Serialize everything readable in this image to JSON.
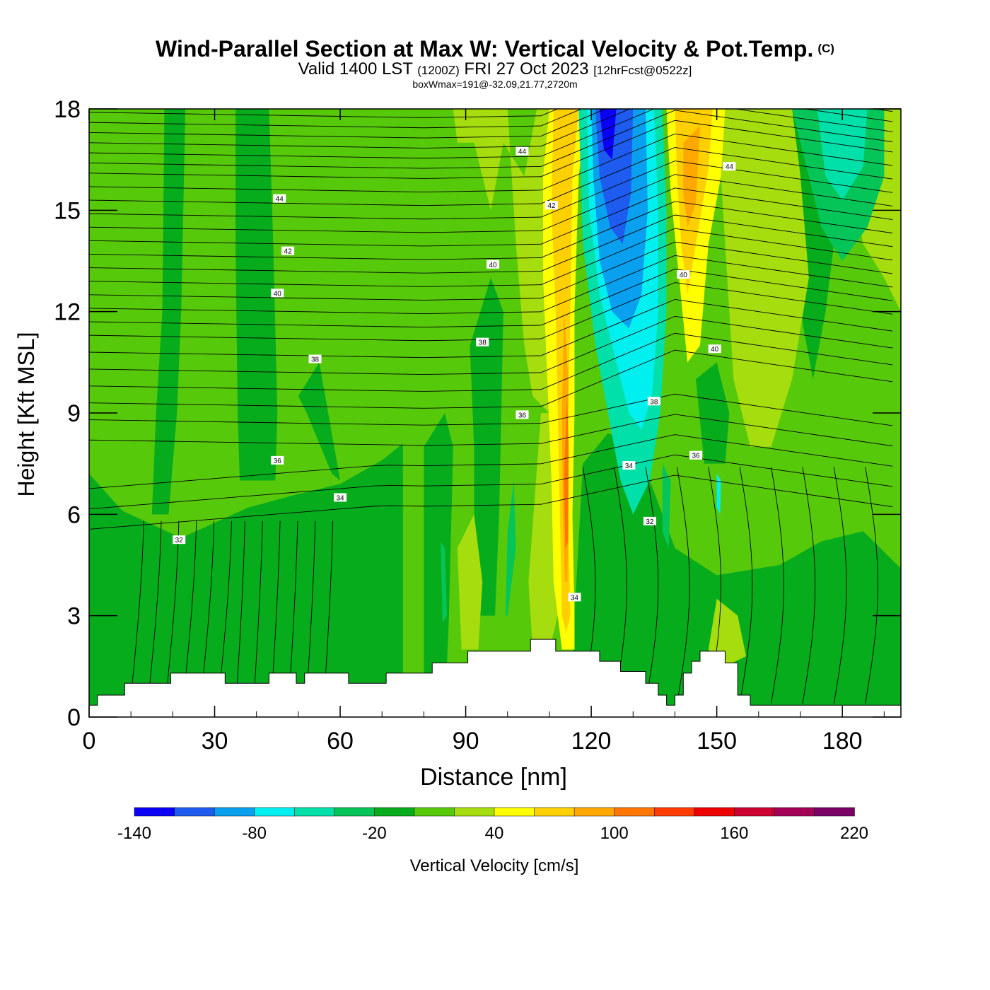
{
  "header": {
    "title": "Wind-Parallel Section at Max W: Vertical Velocity & Pot.Temp.",
    "copyright": "(C)",
    "valid_prefix": "Valid 1400 LST",
    "valid_utc": "(1200Z)",
    "valid_date": "FRI 27 Oct 2023",
    "forecast_info": "[12hrFcst@0522z]",
    "box_info": "boxWmax=191@-32.09,21.77,2720m"
  },
  "chart_data": {
    "type": "heatmap",
    "xlabel": "Distance [nm]",
    "ylabel": "Height [Kft MSL]",
    "xlim": [
      0,
      194
    ],
    "ylim": [
      0,
      18
    ],
    "x_ticks": [
      "0",
      "30",
      "60",
      "90",
      "120",
      "150",
      "180"
    ],
    "y_ticks": [
      "0",
      "3",
      "6",
      "9",
      "12",
      "15",
      "18"
    ],
    "colorbar": {
      "label": "Vertical Velocity [cm/s]",
      "levels": [
        -140,
        -120,
        -100,
        -80,
        -60,
        -40,
        -20,
        0,
        20,
        40,
        60,
        80,
        100,
        120,
        140,
        160,
        180,
        200,
        220
      ],
      "tick_labels": [
        "-140",
        "-80",
        "-20",
        "40",
        "100",
        "160",
        "220"
      ],
      "colors": [
        "#0a00f5",
        "#1e5cf0",
        "#0aa0f0",
        "#00f0f0",
        "#00e0a8",
        "#06c558",
        "#07ac1d",
        "#57c90b",
        "#a6dd0e",
        "#ffff00",
        "#ffd000",
        "#ffa800",
        "#ff7600",
        "#ff3c00",
        "#ee0000",
        "#cc0033",
        "#a30055",
        "#7a0066"
      ]
    },
    "terrain_kft": [
      [
        0,
        0.35
      ],
      [
        2,
        0.35
      ],
      [
        2,
        0.65
      ],
      [
        8.5,
        0.65
      ],
      [
        8.5,
        1.0
      ],
      [
        19.5,
        1.0
      ],
      [
        19.5,
        1.3
      ],
      [
        32.5,
        1.3
      ],
      [
        32.5,
        1.0
      ],
      [
        43,
        1.0
      ],
      [
        43,
        1.3
      ],
      [
        49.5,
        1.3
      ],
      [
        49.5,
        1.0
      ],
      [
        51.5,
        1.0
      ],
      [
        51.5,
        1.3
      ],
      [
        62,
        1.3
      ],
      [
        62,
        1.0
      ],
      [
        71,
        1.0
      ],
      [
        71,
        1.3
      ],
      [
        82,
        1.3
      ],
      [
        82,
        1.6
      ],
      [
        90.5,
        1.6
      ],
      [
        90.5,
        1.95
      ],
      [
        105.5,
        1.95
      ],
      [
        105.5,
        2.3
      ],
      [
        111.5,
        2.3
      ],
      [
        111.5,
        1.95
      ],
      [
        122,
        1.95
      ],
      [
        122,
        1.65
      ],
      [
        127,
        1.65
      ],
      [
        127,
        1.35
      ],
      [
        133,
        1.35
      ],
      [
        133,
        1.0
      ],
      [
        136,
        1.0
      ],
      [
        136,
        0.65
      ],
      [
        138,
        0.65
      ],
      [
        138,
        0.35
      ],
      [
        140,
        0.35
      ],
      [
        140,
        0.65
      ],
      [
        142,
        0.65
      ],
      [
        142,
        1.3
      ],
      [
        144,
        1.3
      ],
      [
        144,
        1.65
      ],
      [
        146,
        1.65
      ],
      [
        146,
        1.95
      ],
      [
        152,
        1.95
      ],
      [
        152,
        1.6
      ],
      [
        155,
        1.6
      ],
      [
        155,
        0.65
      ],
      [
        158,
        0.65
      ],
      [
        158,
        0.35
      ],
      [
        194,
        0.35
      ]
    ],
    "theta_contour_labels": [
      {
        "text": "44",
        "x": 45.5,
        "y": 15.35
      },
      {
        "text": "44",
        "x": 103.5,
        "y": 16.75
      },
      {
        "text": "44",
        "x": 153,
        "y": 16.3
      },
      {
        "text": "42",
        "x": 47.5,
        "y": 13.8
      },
      {
        "text": "42",
        "x": 110.5,
        "y": 15.15
      },
      {
        "text": "40",
        "x": 45,
        "y": 12.55
      },
      {
        "text": "40",
        "x": 96.5,
        "y": 13.4
      },
      {
        "text": "40",
        "x": 142,
        "y": 13.1
      },
      {
        "text": "40",
        "x": 149.5,
        "y": 10.9
      },
      {
        "text": "38",
        "x": 54,
        "y": 10.6
      },
      {
        "text": "38",
        "x": 94,
        "y": 11.1
      },
      {
        "text": "38",
        "x": 135,
        "y": 9.35
      },
      {
        "text": "36",
        "x": 45,
        "y": 7.6
      },
      {
        "text": "36",
        "x": 103.5,
        "y": 8.95
      },
      {
        "text": "36",
        "x": 145,
        "y": 7.75
      },
      {
        "text": "34",
        "x": 60,
        "y": 6.5
      },
      {
        "text": "34",
        "x": 129,
        "y": 7.45
      },
      {
        "text": "34",
        "x": 116,
        "y": 3.55
      },
      {
        "text": "32",
        "x": 21.5,
        "y": 5.25
      },
      {
        "text": "32",
        "x": 134,
        "y": 5.8
      }
    ]
  }
}
